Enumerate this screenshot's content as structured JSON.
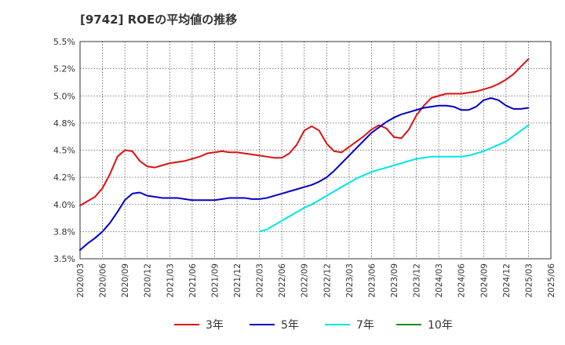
{
  "chart_data": {
    "type": "line",
    "title": "[9742]  ROEの平均値の推移",
    "xlabel": "",
    "ylabel": "",
    "ylim": [
      3.5,
      5.5
    ],
    "yticks": [
      3.5,
      3.75,
      4.0,
      4.25,
      4.5,
      4.75,
      5.0,
      5.25,
      5.5
    ],
    "ytick_labels": [
      "3.5%",
      "3.8%",
      "4.0%",
      "4.2%",
      "4.5%",
      "4.8%",
      "5.0%",
      "5.2%",
      "5.5%"
    ],
    "x_labels": [
      "2020/03",
      "2020/06",
      "2020/09",
      "2020/12",
      "2021/03",
      "2021/06",
      "2021/09",
      "2021/12",
      "2022/03",
      "2022/06",
      "2022/09",
      "2022/12",
      "2023/03",
      "2023/06",
      "2023/09",
      "2023/12",
      "2024/03",
      "2024/06",
      "2024/09",
      "2024/12",
      "2025/03",
      "2025/06"
    ],
    "grid": true,
    "legend_position": "bottom",
    "series": [
      {
        "name": "3年",
        "color": "#dd1111",
        "start_index": 0,
        "values": [
          3.99,
          4.03,
          4.07,
          4.15,
          4.28,
          4.44,
          4.5,
          4.49,
          4.4,
          4.35,
          4.34,
          4.36,
          4.38,
          4.39,
          4.4,
          4.42,
          4.44,
          4.47,
          4.48,
          4.49,
          4.48,
          4.48,
          4.47,
          4.46,
          4.45,
          4.44,
          4.43,
          4.43,
          4.47,
          4.55,
          4.68,
          4.72,
          4.68,
          4.56,
          4.49,
          4.48,
          4.53,
          4.58,
          4.63,
          4.69,
          4.73,
          4.7,
          4.62,
          4.61,
          4.69,
          4.82,
          4.91,
          4.98,
          5.0,
          5.02,
          5.02,
          5.02,
          5.03,
          5.04,
          5.06,
          5.08,
          5.11,
          5.15,
          5.2,
          5.27,
          5.34
        ]
      },
      {
        "name": "5年",
        "color": "#0000cc",
        "start_index": 0,
        "values": [
          3.58,
          3.64,
          3.69,
          3.75,
          3.83,
          3.93,
          4.04,
          4.1,
          4.11,
          4.08,
          4.07,
          4.06,
          4.06,
          4.06,
          4.05,
          4.04,
          4.04,
          4.04,
          4.04,
          4.05,
          4.06,
          4.06,
          4.06,
          4.05,
          4.05,
          4.06,
          4.08,
          4.1,
          4.12,
          4.14,
          4.16,
          4.18,
          4.21,
          4.25,
          4.31,
          4.38,
          4.45,
          4.52,
          4.59,
          4.66,
          4.71,
          4.76,
          4.8,
          4.83,
          4.85,
          4.87,
          4.89,
          4.9,
          4.91,
          4.91,
          4.9,
          4.87,
          4.87,
          4.9,
          4.96,
          4.98,
          4.96,
          4.91,
          4.88,
          4.88,
          4.89
        ]
      },
      {
        "name": "7年",
        "color": "#00e5e5",
        "start_index": 24,
        "values": [
          3.75,
          3.77,
          3.81,
          3.85,
          3.89,
          3.93,
          3.97,
          4.0,
          4.04,
          4.08,
          4.12,
          4.16,
          4.2,
          4.24,
          4.27,
          4.3,
          4.32,
          4.34,
          4.36,
          4.38,
          4.4,
          4.42,
          4.43,
          4.44,
          4.44,
          4.44,
          4.44,
          4.44,
          4.45,
          4.47,
          4.49,
          4.52,
          4.55,
          4.58,
          4.63,
          4.68,
          4.73
        ]
      },
      {
        "name": "10年",
        "color": "#228b22",
        "start_index": 0,
        "values": []
      }
    ]
  }
}
